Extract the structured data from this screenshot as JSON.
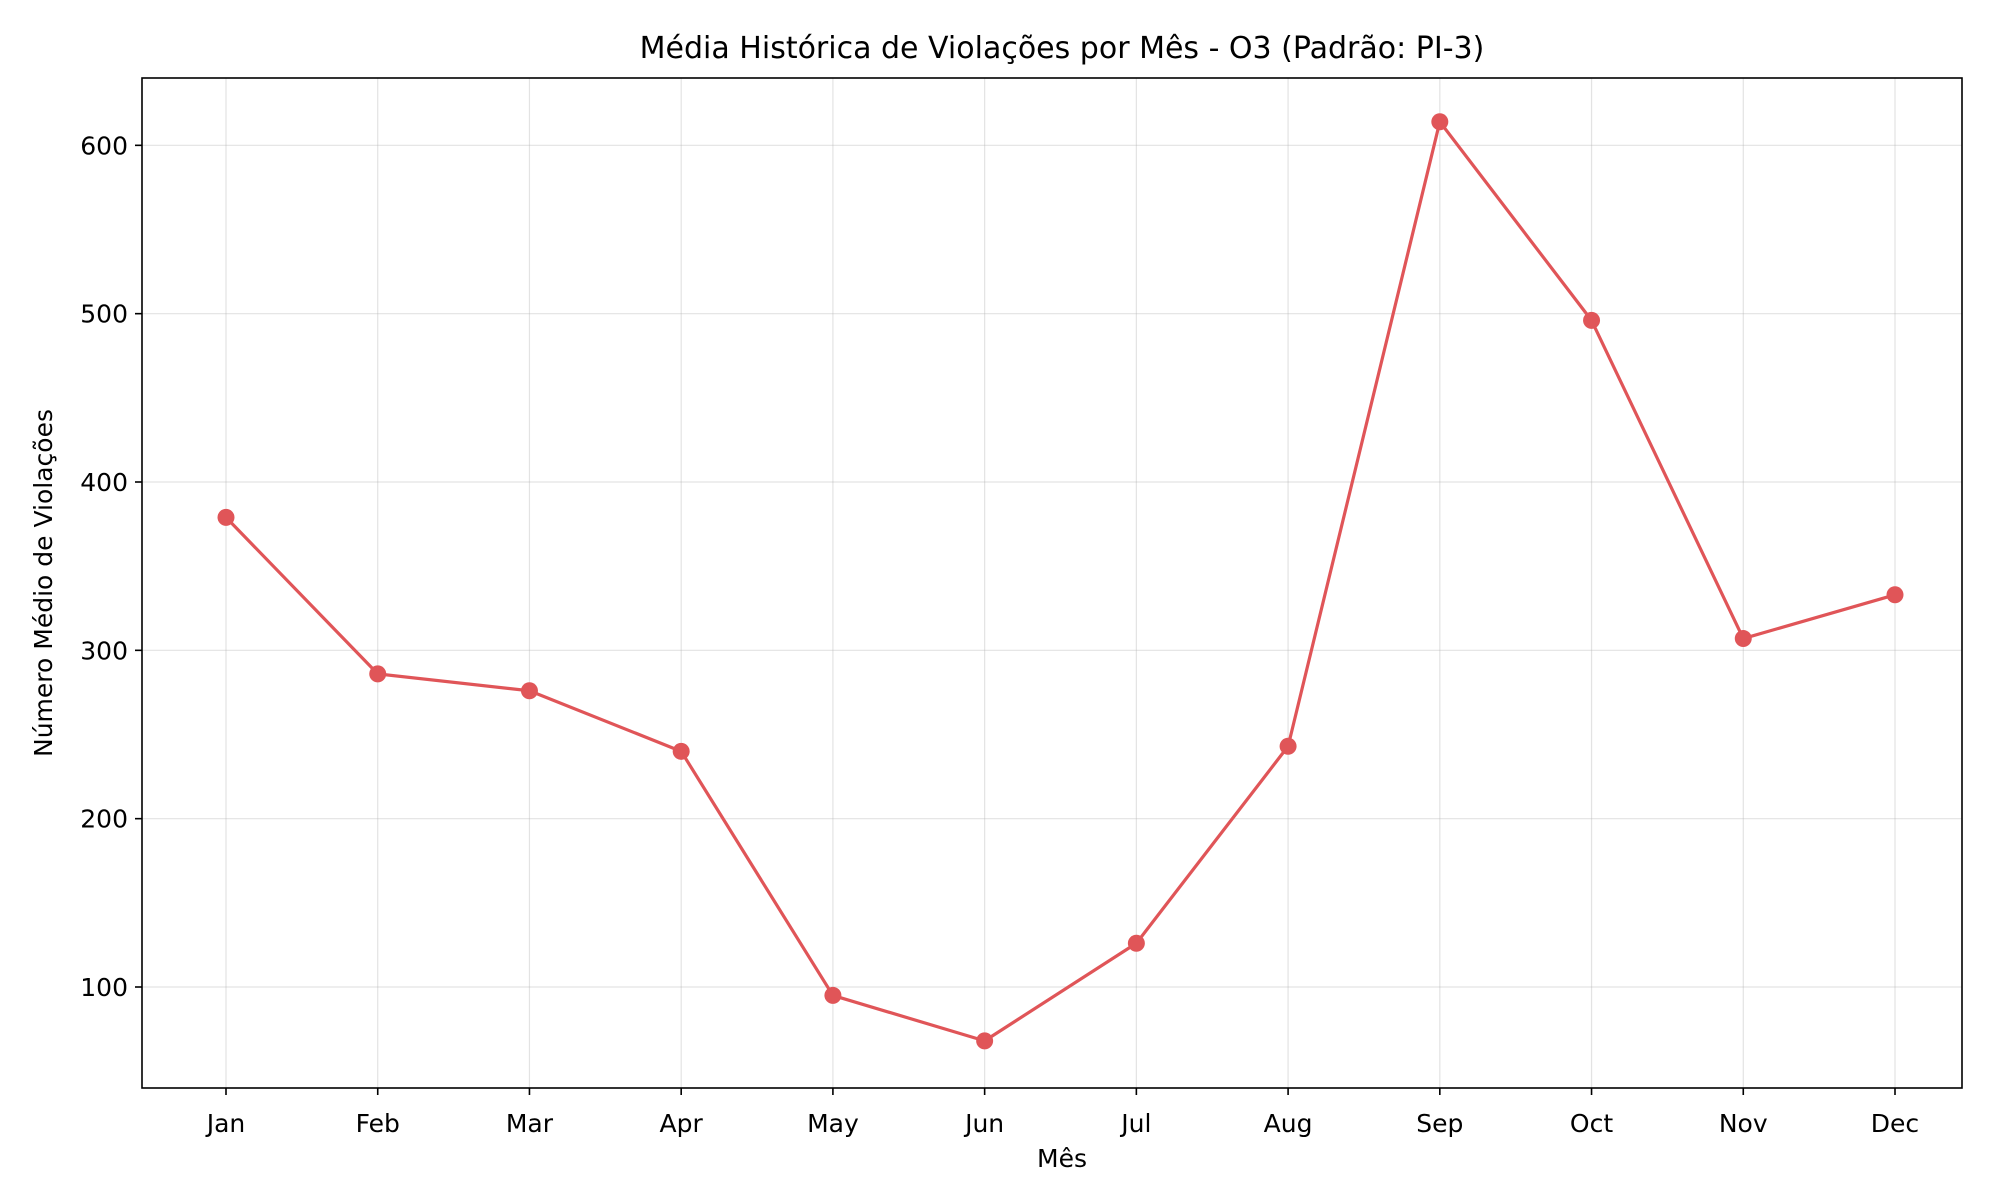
{
  "chart_data": {
    "type": "line",
    "title": "Média Histórica de Violações por Mês - O3 (Padrão: PI-3)",
    "xlabel": "Mês",
    "ylabel": "Número Médio de Violações",
    "categories": [
      "Jan",
      "Feb",
      "Mar",
      "Apr",
      "May",
      "Jun",
      "Jul",
      "Aug",
      "Sep",
      "Oct",
      "Nov",
      "Dec"
    ],
    "series": [
      {
        "values": [
          379,
          286,
          276,
          240,
          95,
          68,
          126,
          243,
          614,
          496,
          307,
          333
        ],
        "color": "#e05558",
        "marker": "circle"
      }
    ],
    "ylim": [
      40,
      640
    ],
    "yticks": [
      100,
      200,
      300,
      400,
      500,
      600
    ],
    "grid": true,
    "legend": "none"
  }
}
